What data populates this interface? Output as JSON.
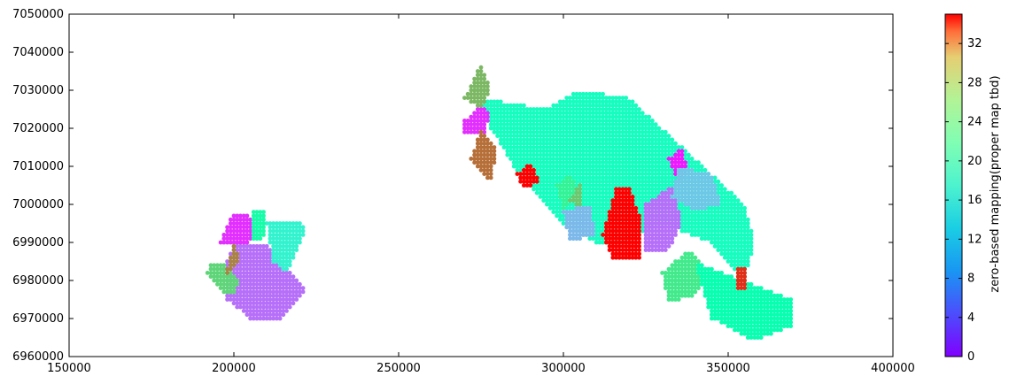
{
  "chart_data": {
    "type": "scatter",
    "title": "",
    "xlabel": "",
    "ylabel": "",
    "xlim": [
      150000,
      400000
    ],
    "ylim": [
      6960000,
      7050000
    ],
    "xticks": [
      150000,
      200000,
      250000,
      300000,
      350000,
      400000
    ],
    "yticks": [
      6960000,
      6970000,
      6980000,
      6990000,
      7000000,
      7010000,
      7020000,
      7030000,
      7040000,
      7050000
    ],
    "grid": false,
    "colormap": "rainbow",
    "colorbar": {
      "label": "zero-based mapping(proper map tbd)",
      "range": [
        0,
        35
      ],
      "ticks": [
        0,
        4,
        8,
        12,
        16,
        20,
        24,
        28,
        32
      ],
      "placement": "right"
    },
    "regions": [
      {
        "value": 5,
        "polygon": [
          [
            205000,
            6970000
          ],
          [
            215000,
            6970000
          ],
          [
            222000,
            6978000
          ],
          [
            215000,
            6985000
          ],
          [
            210000,
            6990000
          ],
          [
            200000,
            6990000
          ],
          [
            197000,
            6983000
          ],
          [
            198000,
            6975000
          ]
        ]
      },
      {
        "value": 2,
        "polygon": [
          [
            196000,
            6990000
          ],
          [
            200000,
            6998000
          ],
          [
            205000,
            6997000
          ],
          [
            207000,
            6992000
          ],
          [
            203000,
            6989000
          ]
        ]
      },
      {
        "value": 24,
        "polygon": [
          [
            193000,
            6985000
          ],
          [
            198000,
            6984000
          ],
          [
            202000,
            6980000
          ],
          [
            200000,
            6976000
          ],
          [
            197000,
            6977000
          ],
          [
            192000,
            6982000
          ]
        ]
      },
      {
        "value": 29,
        "polygon": [
          [
            197000,
            6980000
          ],
          [
            200000,
            6990000
          ],
          [
            202000,
            6985000
          ]
        ]
      },
      {
        "value": 14,
        "polygon": [
          [
            210000,
            6995000
          ],
          [
            220000,
            6996000
          ],
          [
            222000,
            6993000
          ],
          [
            216000,
            6982000
          ],
          [
            212000,
            6985000
          ]
        ]
      },
      {
        "value": 19,
        "polygon": [
          [
            205000,
            6999000
          ],
          [
            210000,
            6998000
          ],
          [
            209000,
            6991000
          ],
          [
            206000,
            6991000
          ]
        ]
      },
      {
        "value": 16,
        "polygon": [
          [
            275000,
            7028000
          ],
          [
            295000,
            7025000
          ],
          [
            305000,
            7030000
          ],
          [
            320000,
            7028000
          ],
          [
            330000,
            7020000
          ],
          [
            340000,
            7012000
          ],
          [
            355000,
            7000000
          ],
          [
            358000,
            6990000
          ],
          [
            355000,
            6980000
          ],
          [
            345000,
            6990000
          ],
          [
            330000,
            6995000
          ],
          [
            320000,
            6990000
          ],
          [
            310000,
            6990000
          ],
          [
            300000,
            6995000
          ],
          [
            285000,
            7010000
          ],
          [
            278000,
            7020000
          ]
        ]
      },
      {
        "value": 2,
        "polygon": [
          [
            270000,
            7022000
          ],
          [
            275000,
            7026000
          ],
          [
            278000,
            7024000
          ],
          [
            276000,
            7018000
          ],
          [
            270000,
            7019000
          ]
        ]
      },
      {
        "value": 30,
        "polygon": [
          [
            275000,
            7020000
          ],
          [
            280000,
            7015000
          ],
          [
            278000,
            7006000
          ],
          [
            272000,
            7012000
          ]
        ]
      },
      {
        "value": 26,
        "polygon": [
          [
            270000,
            7028000
          ],
          [
            275000,
            7037000
          ],
          [
            278000,
            7030000
          ],
          [
            275000,
            7025000
          ]
        ]
      },
      {
        "value": 35,
        "polygon": [
          [
            286000,
            7008000
          ],
          [
            290000,
            7011000
          ],
          [
            293000,
            7006000
          ],
          [
            288000,
            7004000
          ]
        ]
      },
      {
        "value": 35,
        "polygon": [
          [
            316000,
            7005000
          ],
          [
            320000,
            7005000
          ],
          [
            324000,
            6995000
          ],
          [
            323000,
            6985000
          ],
          [
            315000,
            6986000
          ],
          [
            312000,
            6992000
          ]
        ]
      },
      {
        "value": 5,
        "polygon": [
          [
            325000,
            7000000
          ],
          [
            333000,
            7005000
          ],
          [
            336000,
            6995000
          ],
          [
            332000,
            6988000
          ],
          [
            325000,
            6987000
          ]
        ]
      },
      {
        "value": 22,
        "polygon": [
          [
            330000,
            6982000
          ],
          [
            338000,
            6988000
          ],
          [
            344000,
            6983000
          ],
          [
            340000,
            6976000
          ],
          [
            332000,
            6974000
          ]
        ]
      },
      {
        "value": 18,
        "polygon": [
          [
            340000,
            6985000
          ],
          [
            355000,
            6980000
          ],
          [
            370000,
            6975000
          ],
          [
            370000,
            6968000
          ],
          [
            358000,
            6964000
          ],
          [
            345000,
            6970000
          ]
        ]
      },
      {
        "value": 1,
        "polygon": [
          [
            332000,
            7012000
          ],
          [
            336000,
            7015000
          ],
          [
            338000,
            7008000
          ],
          [
            335000,
            7005000
          ]
        ]
      },
      {
        "value": 10,
        "polygon": [
          [
            335000,
            7010000
          ],
          [
            345000,
            7008000
          ],
          [
            348000,
            7000000
          ],
          [
            340000,
            6998000
          ],
          [
            333000,
            7002000
          ]
        ]
      },
      {
        "value": 33,
        "polygon": [
          [
            353000,
            6983000
          ],
          [
            356000,
            6984000
          ],
          [
            356000,
            6978000
          ],
          [
            353000,
            6978000
          ]
        ]
      },
      {
        "value": 21,
        "polygon": [
          [
            298000,
            7005000
          ],
          [
            302000,
            7008000
          ],
          [
            305000,
            7003000
          ],
          [
            300000,
            6998000
          ]
        ]
      },
      {
        "value": 25,
        "polygon": [
          [
            302000,
            7001000
          ],
          [
            305000,
            7006000
          ],
          [
            306000,
            6998000
          ]
        ]
      },
      {
        "value": 9,
        "polygon": [
          [
            300000,
            6998000
          ],
          [
            308000,
            7000000
          ],
          [
            310000,
            6992000
          ],
          [
            302000,
            6990000
          ]
        ]
      }
    ]
  }
}
